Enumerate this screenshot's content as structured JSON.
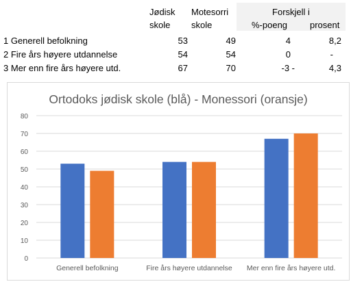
{
  "table": {
    "headers": {
      "school1": [
        "Jødisk",
        "skole"
      ],
      "school2": [
        "Motesorri",
        "skole"
      ],
      "diff_group": "Forskjell i",
      "diff_points": "%-poeng",
      "diff_percent": "prosent"
    },
    "rows": [
      {
        "label": "1 Generell befolkning",
        "school1": "53",
        "school2": "49",
        "points": "4",
        "percent": "8,2"
      },
      {
        "label": "2 Fire års høyere utdannelse",
        "school1": "54",
        "school2": "54",
        "points": "0",
        "percent": "-"
      },
      {
        "label": "3 Mer enn fire års høyere utd.",
        "school1": "67",
        "school2": "70",
        "points": "-3 -",
        "percent": "4,3"
      }
    ]
  },
  "colors": {
    "blue": "#4472c4",
    "orange": "#ed7d31",
    "grid": "#d9d9d9",
    "axis_text": "#595959"
  },
  "chart_data": {
    "type": "bar",
    "title": "Ortodoks jødisk skole (blå) - Monessori (oransje)",
    "categories": [
      "Generell befolkning",
      "Fire års høyere utdannelse",
      "Mer enn fire års høyere utd."
    ],
    "series": [
      {
        "values": [
          53,
          54,
          67
        ],
        "color": "#4472c4"
      },
      {
        "values": [
          49,
          54,
          70
        ],
        "color": "#ed7d31"
      }
    ],
    "ylim": [
      0,
      80
    ],
    "yticks": [
      0,
      10,
      20,
      30,
      40,
      50,
      60,
      70,
      80
    ],
    "grid": true,
    "legend": "none"
  }
}
